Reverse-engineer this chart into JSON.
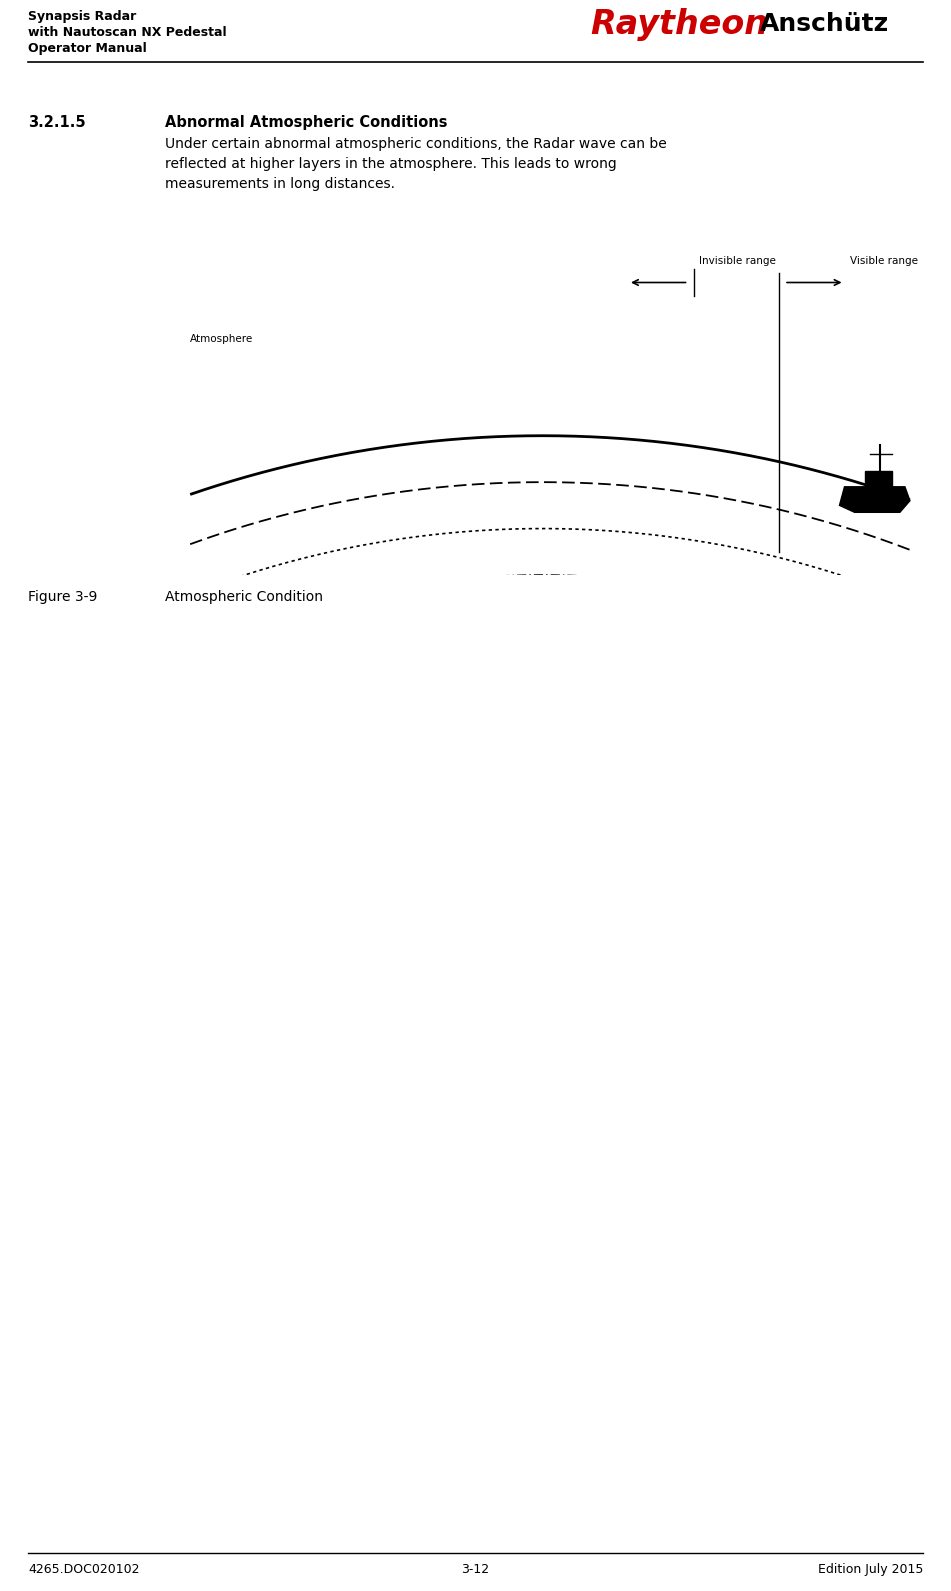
{
  "page_width": 9.51,
  "page_height": 15.91,
  "bg_color": "#ffffff",
  "header_left_line1": "Synapsis Radar",
  "header_left_line2": "with Nautoscan NX Pedestal",
  "header_left_line3": "Operator Manual",
  "header_raytheon": "Raytheon",
  "header_anschutz": "Anschütz",
  "footer_left": "4265.DOC020102",
  "footer_center": "3-12",
  "footer_right": "Edition July 2015",
  "section_number": "3.2.1.5",
  "section_title": "Abnormal Atmospheric Conditions",
  "section_body_line1": "Under certain abnormal atmospheric conditions, the Radar wave can be",
  "section_body_line2": "reflected at higher layers in the atmosphere. This leads to wrong",
  "section_body_line3": "measurements in long distances.",
  "figure_caption_number": "Figure 3-9",
  "figure_caption_text": "Atmospheric Condition",
  "label_atmosphere": "Atmosphere",
  "label_invisible": "Invisible range",
  "label_visible": "Visible range",
  "text_color": "#000000",
  "red_color": "#cc0000"
}
